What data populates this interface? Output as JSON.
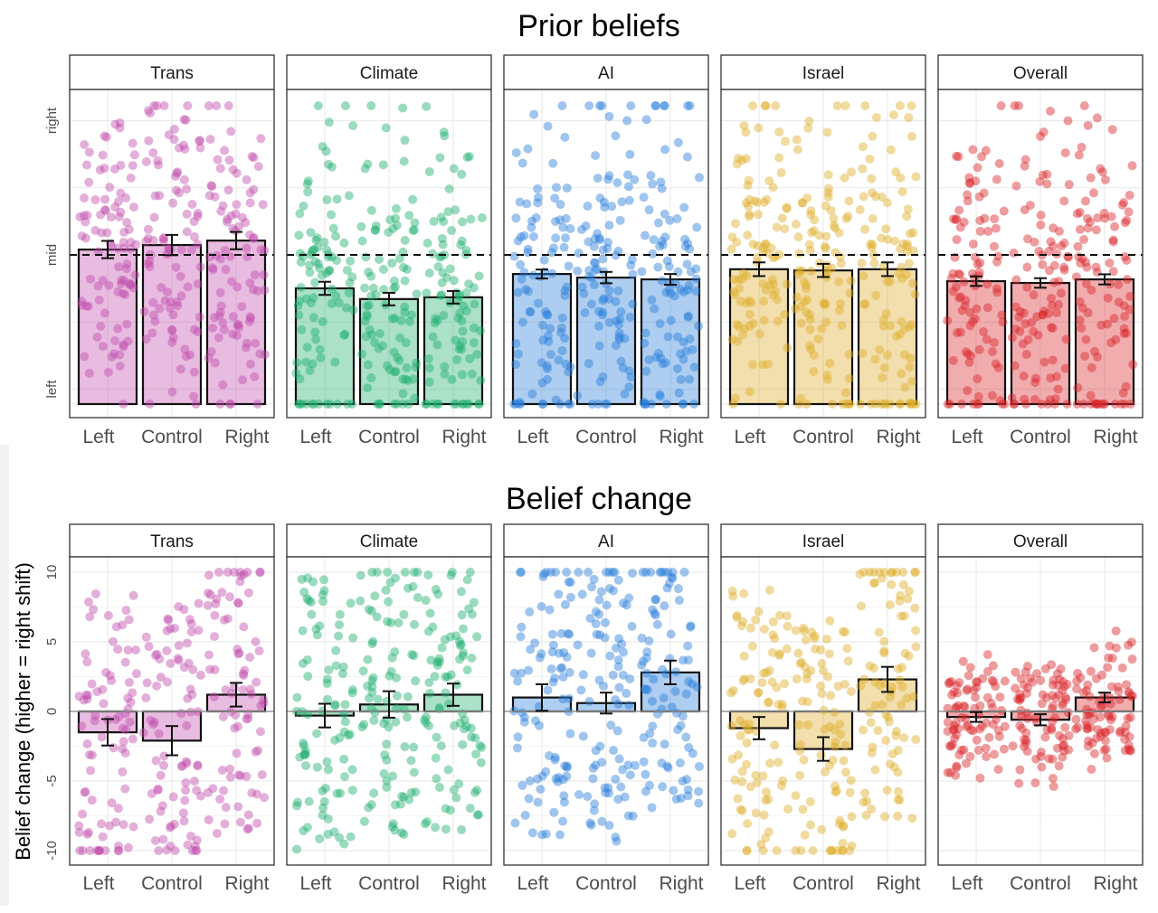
{
  "chart_data": [
    {
      "type": "bar",
      "title": "Prior beliefs",
      "xlabel": "",
      "ylabel": "",
      "ylim": [
        0,
        100
      ],
      "yticks": [
        {
          "value": 5,
          "label": "left"
        },
        {
          "value": 50,
          "label": "mid"
        },
        {
          "value": 95,
          "label": "right"
        }
      ],
      "reference_line": {
        "value": 50,
        "style": "dashed"
      },
      "grid": true,
      "categories": [
        "Left",
        "Control",
        "Right"
      ],
      "panels": [
        {
          "name": "Trans",
          "color": "#c24dae",
          "values": [
            51.8,
            53.3,
            54.8
          ],
          "errors": [
            2.9,
            3.4,
            2.9
          ]
        },
        {
          "name": "Climate",
          "color": "#1fb06e",
          "values": [
            38.8,
            35.2,
            35.8
          ],
          "errors": [
            2.2,
            2.1,
            2.1
          ]
        },
        {
          "name": "AI",
          "color": "#2a7fd9",
          "values": [
            43.6,
            42.4,
            41.8
          ],
          "errors": [
            1.5,
            1.9,
            1.8
          ]
        },
        {
          "name": "Israel",
          "color": "#deac28",
          "values": [
            45.2,
            44.8,
            45.2
          ],
          "errors": [
            2.3,
            2.2,
            2.3
          ]
        },
        {
          "name": "Overall",
          "color": "#d9262b",
          "values": [
            41.2,
            40.6,
            41.8
          ],
          "errors": [
            1.6,
            1.6,
            1.7
          ]
        }
      ]
    },
    {
      "type": "bar",
      "title": "Belief change",
      "xlabel": "",
      "ylabel": "Belief change (higher = right shift)",
      "ylim": [
        -10.7,
        10.7
      ],
      "yticks": [
        {
          "value": -10,
          "label": "-10"
        },
        {
          "value": -5,
          "label": "-5"
        },
        {
          "value": 0,
          "label": "0"
        },
        {
          "value": 5,
          "label": "5"
        },
        {
          "value": 10,
          "label": "10"
        }
      ],
      "reference_line": {
        "value": 0,
        "style": "solid"
      },
      "grid": true,
      "categories": [
        "Left",
        "Control",
        "Right"
      ],
      "panels": [
        {
          "name": "Trans",
          "color": "#c24dae",
          "values": [
            -1.5,
            -2.1,
            1.2
          ],
          "errors": [
            0.95,
            1.05,
            0.85
          ]
        },
        {
          "name": "Climate",
          "color": "#1fb06e",
          "values": [
            -0.3,
            0.5,
            1.2
          ],
          "errors": [
            0.85,
            0.95,
            0.8
          ]
        },
        {
          "name": "AI",
          "color": "#2a7fd9",
          "values": [
            1.0,
            0.6,
            2.8
          ],
          "errors": [
            0.95,
            0.75,
            0.85
          ]
        },
        {
          "name": "Israel",
          "color": "#deac28",
          "values": [
            -1.2,
            -2.7,
            2.3
          ],
          "errors": [
            0.8,
            0.85,
            0.9
          ]
        },
        {
          "name": "Overall",
          "color": "#d9262b",
          "values": [
            -0.4,
            -0.6,
            1.0
          ],
          "errors": [
            0.35,
            0.4,
            0.35
          ]
        }
      ]
    }
  ]
}
